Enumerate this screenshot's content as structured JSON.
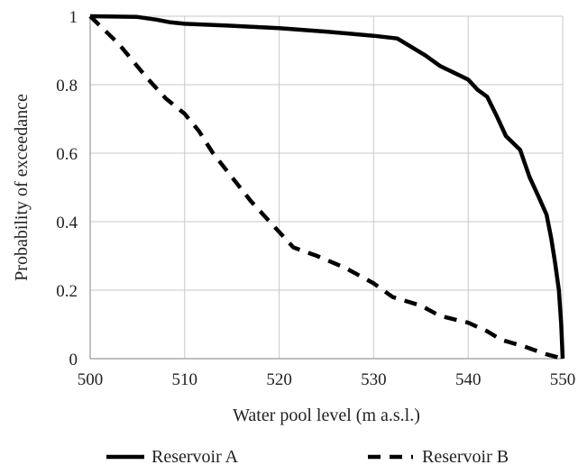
{
  "chart_data": {
    "type": "line",
    "title": "",
    "xlabel": "Water pool level (m a.s.l.)",
    "ylabel": "Probability of exceedance",
    "xlim": [
      500,
      550
    ],
    "ylim": [
      0,
      1
    ],
    "xticks": [
      "500",
      "510",
      "520",
      "530",
      "540",
      "550"
    ],
    "yticks": [
      "0",
      "0.2",
      "0.4",
      "0.6",
      "0.8",
      "1"
    ],
    "grid": true,
    "legend_position": "bottom",
    "series": [
      {
        "name": "Reservoir A",
        "style": "solid",
        "color": "#000000",
        "points": [
          [
            500,
            1.0
          ],
          [
            505,
            0.998
          ],
          [
            507,
            0.99
          ],
          [
            508.5,
            0.982
          ],
          [
            510,
            0.978
          ],
          [
            515,
            0.972
          ],
          [
            520,
            0.965
          ],
          [
            525,
            0.955
          ],
          [
            530,
            0.943
          ],
          [
            532.5,
            0.935
          ],
          [
            534,
            0.91
          ],
          [
            535.5,
            0.885
          ],
          [
            537,
            0.855
          ],
          [
            538.5,
            0.835
          ],
          [
            540,
            0.815
          ],
          [
            541,
            0.785
          ],
          [
            542,
            0.765
          ],
          [
            543,
            0.71
          ],
          [
            544,
            0.65
          ],
          [
            545.5,
            0.61
          ],
          [
            546.5,
            0.53
          ],
          [
            547.5,
            0.47
          ],
          [
            548.3,
            0.42
          ],
          [
            548.8,
            0.35
          ],
          [
            549.2,
            0.28
          ],
          [
            549.6,
            0.2
          ],
          [
            549.85,
            0.1
          ],
          [
            550,
            0.0
          ]
        ]
      },
      {
        "name": "Reservoir B",
        "style": "dashed",
        "color": "#000000",
        "points": [
          [
            500,
            1.0
          ],
          [
            501.5,
            0.96
          ],
          [
            503,
            0.92
          ],
          [
            504.5,
            0.87
          ],
          [
            506,
            0.82
          ],
          [
            508,
            0.76
          ],
          [
            510,
            0.715
          ],
          [
            511.5,
            0.665
          ],
          [
            513,
            0.6
          ],
          [
            515,
            0.53
          ],
          [
            517,
            0.46
          ],
          [
            519,
            0.4
          ],
          [
            520,
            0.37
          ],
          [
            521.5,
            0.325
          ],
          [
            524,
            0.3
          ],
          [
            527,
            0.265
          ],
          [
            530,
            0.22
          ],
          [
            532,
            0.18
          ],
          [
            535,
            0.155
          ],
          [
            537,
            0.125
          ],
          [
            540,
            0.105
          ],
          [
            542,
            0.08
          ],
          [
            543.5,
            0.055
          ],
          [
            546,
            0.035
          ],
          [
            548,
            0.015
          ],
          [
            550,
            0.0
          ]
        ]
      }
    ]
  }
}
